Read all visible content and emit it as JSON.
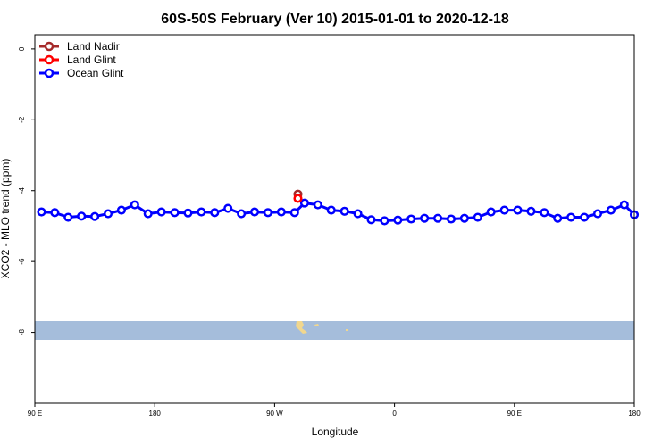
{
  "chart_data": {
    "type": "line",
    "title": "60S-50S February (Ver 10)   2015-01-01 to 2020-12-18",
    "xlabel": "Longitude",
    "ylabel": "XCO2 - MLO trend (ppm)",
    "xlim": [
      90,
      540
    ],
    "ylim": [
      -10,
      0.4
    ],
    "x_ticks": [
      {
        "value": 90,
        "label": "90 E"
      },
      {
        "value": 180,
        "label": "180"
      },
      {
        "value": 270,
        "label": "90 W"
      },
      {
        "value": 360,
        "label": "0"
      },
      {
        "value": 450,
        "label": "90 E"
      },
      {
        "value": 540,
        "label": "180"
      }
    ],
    "y_ticks": [
      0,
      -2,
      -4,
      -6,
      -8
    ],
    "grid": false,
    "legend_position": "top-left",
    "series": [
      {
        "name": "Land Nadir",
        "color": "#a52a2a",
        "x": [
          287.5
        ],
        "y": [
          -4.1
        ]
      },
      {
        "name": "Land Glint",
        "color": "#ff0000",
        "x": [
          287.5
        ],
        "y": [
          -4.22
        ]
      },
      {
        "name": "Ocean Glint",
        "color": "#0000ff",
        "x": [
          95,
          105,
          115,
          125,
          135,
          145,
          155,
          165,
          175,
          185,
          195,
          205,
          215,
          225,
          235,
          245,
          255,
          265,
          275,
          285,
          292.5,
          302.5,
          312.5,
          322.5,
          332.5,
          342.5,
          352.5,
          362.5,
          372.5,
          382.5,
          392.5,
          402.5,
          412.5,
          422.5,
          432.5,
          442.5,
          452.5,
          462.5,
          472.5,
          482.5,
          492.5,
          502.5,
          512.5,
          522.5,
          532.5,
          540
        ],
        "y": [
          -4.6,
          -4.62,
          -4.75,
          -4.72,
          -4.73,
          -4.65,
          -4.55,
          -4.4,
          -4.65,
          -4.6,
          -4.62,
          -4.63,
          -4.6,
          -4.62,
          -4.5,
          -4.65,
          -4.6,
          -4.62,
          -4.6,
          -4.62,
          -4.35,
          -4.4,
          -4.55,
          -4.58,
          -4.65,
          -4.82,
          -4.85,
          -4.83,
          -4.8,
          -4.78,
          -4.78,
          -4.8,
          -4.78,
          -4.75,
          -4.6,
          -4.55,
          -4.55,
          -4.58,
          -4.62,
          -4.78,
          -4.75,
          -4.75,
          -4.65,
          -4.55,
          -4.4,
          -4.68
        ]
      }
    ]
  }
}
